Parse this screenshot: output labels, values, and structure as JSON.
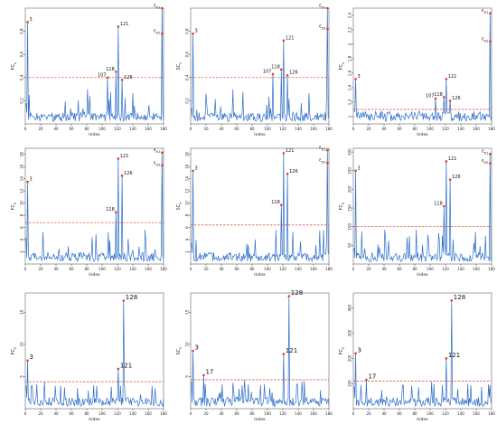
{
  "chart_data": [
    {
      "type": "line",
      "xlabel": "Index",
      "ylabel": "FC_{ti}",
      "xlim": [
        0,
        180
      ],
      "ylim": [
        0,
        1.0
      ],
      "yticks": [
        0.2,
        0.4,
        0.6,
        0.8
      ],
      "xticks": [
        0,
        20,
        40,
        60,
        80,
        100,
        120,
        140,
        160,
        180
      ],
      "cutoff": 0.4,
      "peaks": [
        {
          "x": 3,
          "y": 0.88,
          "label": "3"
        },
        {
          "x": 107,
          "y": 0.4,
          "label": "107"
        },
        {
          "x": 118,
          "y": 0.45,
          "label": "118"
        },
        {
          "x": 121,
          "y": 0.84,
          "label": "121"
        },
        {
          "x": 126,
          "y": 0.38,
          "label": "126"
        },
        {
          "x": 178,
          "y": 1.0,
          "label": "ε_{ti1}"
        },
        {
          "x": 178,
          "y": 0.78,
          "label": "ε_{ti2}"
        }
      ]
    },
    {
      "type": "line",
      "xlabel": "Index",
      "ylabel": "SC_{ti}",
      "xlim": [
        0,
        180
      ],
      "ylim": [
        0,
        1.0
      ],
      "yticks": [
        0.2,
        0.4,
        0.6,
        0.8
      ],
      "xticks": [
        0,
        20,
        40,
        60,
        80,
        100,
        120,
        140,
        160,
        180
      ],
      "cutoff": 0.4,
      "peaks": [
        {
          "x": 3,
          "y": 0.78,
          "label": "3"
        },
        {
          "x": 107,
          "y": 0.43,
          "label": "107"
        },
        {
          "x": 118,
          "y": 0.47,
          "label": "118"
        },
        {
          "x": 121,
          "y": 0.72,
          "label": "121"
        },
        {
          "x": 126,
          "y": 0.42,
          "label": "126"
        },
        {
          "x": 178,
          "y": 1.0,
          "label": "ε_{ti1}"
        },
        {
          "x": 178,
          "y": 0.82,
          "label": "ε_{ti2}"
        }
      ]
    },
    {
      "type": "line",
      "xlabel": "Index",
      "ylabel": "FC_{ti}",
      "xlim": [
        0,
        180
      ],
      "ylim": [
        0.9,
        2.5
      ],
      "yticks": [
        1.0,
        1.2,
        1.4,
        1.6,
        1.8,
        2.0,
        2.2,
        2.4
      ],
      "xticks": [
        0,
        20,
        40,
        60,
        80,
        100,
        120,
        140,
        160,
        180
      ],
      "cutoff": 1.1,
      "peaks": [
        {
          "x": 3,
          "y": 1.52,
          "label": "3"
        },
        {
          "x": 107,
          "y": 1.25,
          "label": "107"
        },
        {
          "x": 118,
          "y": 1.27,
          "label": "118"
        },
        {
          "x": 121,
          "y": 1.52,
          "label": "121"
        },
        {
          "x": 126,
          "y": 1.22,
          "label": "126"
        },
        {
          "x": 178,
          "y": 2.43,
          "label": "ε_{ti1}"
        },
        {
          "x": 178,
          "y": 2.04,
          "label": "ε_{ti2}"
        }
      ]
    },
    {
      "type": "line",
      "xlabel": "Index",
      "ylabel": "FC_{ti}",
      "xlim": [
        0,
        180
      ],
      "ylim": [
        0,
        19
      ],
      "yticks": [
        2,
        4,
        6,
        8,
        10,
        12,
        14,
        16,
        18
      ],
      "xticks": [
        0,
        20,
        40,
        60,
        80,
        100,
        120,
        140,
        160,
        180
      ],
      "cutoff": 6.8,
      "peaks": [
        {
          "x": 3,
          "y": 13.5,
          "label": "3"
        },
        {
          "x": 118,
          "y": 8.5,
          "label": "118"
        },
        {
          "x": 121,
          "y": 17.3,
          "label": "121"
        },
        {
          "x": 126,
          "y": 14.5,
          "label": "126"
        },
        {
          "x": 178,
          "y": 18.3,
          "label": "ε_{ti1}"
        },
        {
          "x": 178,
          "y": 16.2,
          "label": "ε_{ti2}"
        }
      ]
    },
    {
      "type": "line",
      "xlabel": "Index",
      "ylabel": "SC_{ti}",
      "xlim": [
        0,
        180
      ],
      "ylim": [
        0,
        19
      ],
      "yticks": [
        2,
        4,
        6,
        8,
        10,
        12,
        14,
        16,
        18
      ],
      "xticks": [
        0,
        20,
        40,
        60,
        80,
        100,
        120,
        140,
        160,
        180
      ],
      "cutoff": 6.4,
      "peaks": [
        {
          "x": 3,
          "y": 15.3,
          "label": "3"
        },
        {
          "x": 118,
          "y": 9.7,
          "label": "118"
        },
        {
          "x": 121,
          "y": 18.2,
          "label": "121"
        },
        {
          "x": 126,
          "y": 14.8,
          "label": "126"
        },
        {
          "x": 178,
          "y": 18.7,
          "label": "ε_{ti1}"
        },
        {
          "x": 178,
          "y": 16.6,
          "label": "ε_{ti2}"
        }
      ]
    },
    {
      "type": "line",
      "xlabel": "Index",
      "ylabel": "FC_{ti}",
      "xlim": [
        0,
        180
      ],
      "ylim": [
        0,
        310
      ],
      "yticks": [
        50,
        100,
        150,
        200,
        250,
        300
      ],
      "xticks": [
        0,
        20,
        40,
        60,
        80,
        100,
        120,
        140,
        160,
        180
      ],
      "cutoff": 100,
      "peaks": [
        {
          "x": 3,
          "y": 250,
          "label": "3"
        },
        {
          "x": 118,
          "y": 155,
          "label": "118"
        },
        {
          "x": 121,
          "y": 275,
          "label": "121"
        },
        {
          "x": 126,
          "y": 226,
          "label": "126"
        },
        {
          "x": 178,
          "y": 295,
          "label": "ε_{ti1}"
        },
        {
          "x": 178,
          "y": 270,
          "label": "ε_{ti2}"
        }
      ]
    },
    {
      "type": "line",
      "xlabel": "Index",
      "ylabel": "FC_{ti}",
      "xlim": [
        0,
        180
      ],
      "ylim": [
        0,
        18
      ],
      "yticks": [
        5,
        10,
        15
      ],
      "xticks": [
        0,
        20,
        40,
        60,
        80,
        100,
        120,
        140,
        160,
        180
      ],
      "cutoff": 4.2,
      "peaks": [
        {
          "x": 3,
          "y": 7.5,
          "label": "3"
        },
        {
          "x": 121,
          "y": 6.2,
          "label": "121"
        },
        {
          "x": 128,
          "y": 16.8,
          "label": "128"
        }
      ]
    },
    {
      "type": "line",
      "xlabel": "Index",
      "ylabel": "SC_{ti}",
      "xlim": [
        0,
        180
      ],
      "ylim": [
        0,
        18
      ],
      "yticks": [
        5,
        10,
        15
      ],
      "xticks": [
        0,
        20,
        40,
        60,
        80,
        100,
        120,
        140,
        160,
        180
      ],
      "cutoff": 4.5,
      "peaks": [
        {
          "x": 3,
          "y": 9,
          "label": "3"
        },
        {
          "x": 17,
          "y": 5.2,
          "label": "17"
        },
        {
          "x": 121,
          "y": 8.5,
          "label": "121"
        },
        {
          "x": 128,
          "y": 17.5,
          "label": "128"
        }
      ]
    },
    {
      "type": "line",
      "xlabel": "Index",
      "ylabel": "FC_{ti}",
      "xlim": [
        0,
        180
      ],
      "ylim": [
        0,
        460
      ],
      "yticks": [
        100,
        200,
        300,
        400
      ],
      "xticks": [
        0,
        20,
        40,
        60,
        80,
        100,
        120,
        140,
        160,
        180
      ],
      "cutoff": 110,
      "peaks": [
        {
          "x": 3,
          "y": 220,
          "label": "3"
        },
        {
          "x": 17,
          "y": 115,
          "label": "17"
        },
        {
          "x": 121,
          "y": 200,
          "label": "121"
        },
        {
          "x": 128,
          "y": 430,
          "label": "128"
        }
      ]
    }
  ]
}
